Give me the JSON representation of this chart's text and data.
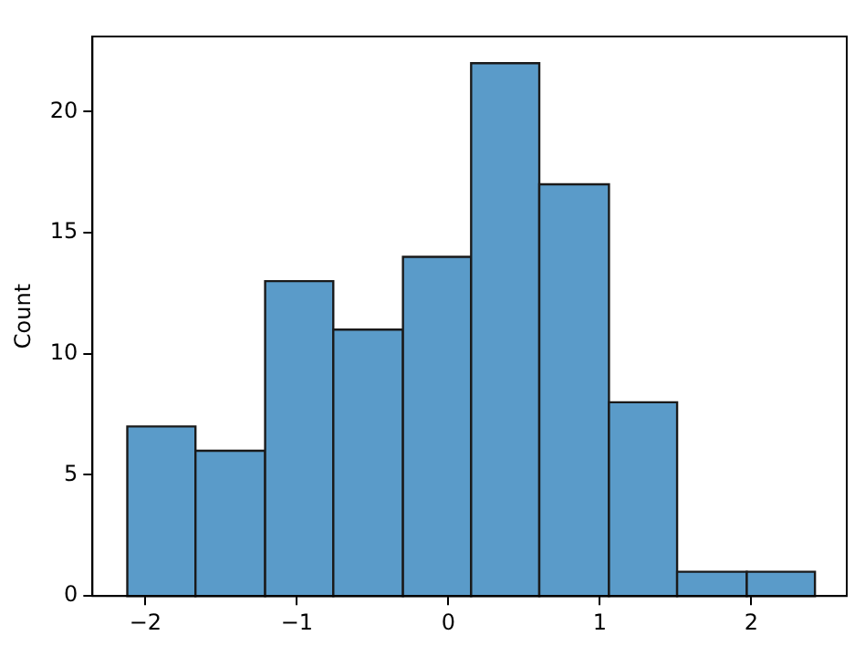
{
  "chart_data": {
    "type": "histogram",
    "ylabel": "Count",
    "bins": [
      -2.12,
      -1.67,
      -1.21,
      -0.76,
      -0.3,
      0.15,
      0.6,
      1.06,
      1.51,
      1.97,
      2.42
    ],
    "values": [
      7,
      6,
      13,
      11,
      14,
      22,
      17,
      8,
      1,
      1
    ],
    "color": "#5a9bc9",
    "xlim": [
      -2.35,
      2.63
    ],
    "xticks": [
      {
        "value": -2,
        "label": "−2"
      },
      {
        "value": -1,
        "label": "−1"
      },
      0,
      1,
      2
    ],
    "ylim": [
      0,
      23.1
    ],
    "yticks": [
      0,
      5,
      10,
      15,
      20
    ],
    "grid": false,
    "legend": false
  }
}
